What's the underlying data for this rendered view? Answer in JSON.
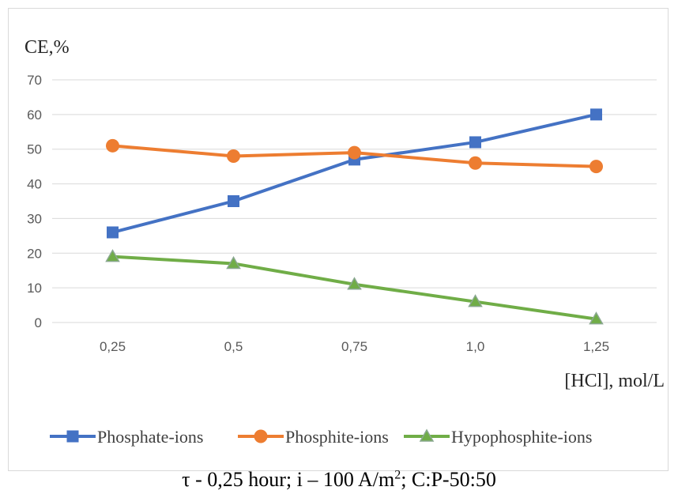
{
  "caption": {
    "before_sup": "τ - 0,25 hour; i – 100 A/m",
    "sup": "2",
    "after_sup": "; C:P-50:50"
  },
  "chart_data": {
    "type": "line",
    "ylabel": "CE,%",
    "xlabel": "[HCl], mol/L",
    "categories": [
      "0,25",
      "0,5",
      "0,75",
      "1,0",
      "1,25"
    ],
    "ylim": [
      0,
      70
    ],
    "yticks": [
      0,
      10,
      20,
      30,
      40,
      50,
      60,
      70
    ],
    "grid": true,
    "legend_position": "bottom",
    "series": [
      {
        "name": "Phosphate-ions",
        "values": [
          26,
          35,
          47,
          52,
          60
        ],
        "color": "#4472c4",
        "marker": "square"
      },
      {
        "name": "Phosphite-ions",
        "values": [
          51,
          48,
          49,
          46,
          45
        ],
        "color": "#ed7d31",
        "marker": "circle"
      },
      {
        "name": "Hypophosphite-ions",
        "values": [
          19,
          17,
          11,
          6,
          1
        ],
        "color": "#70ad47",
        "marker": "triangle"
      }
    ]
  }
}
